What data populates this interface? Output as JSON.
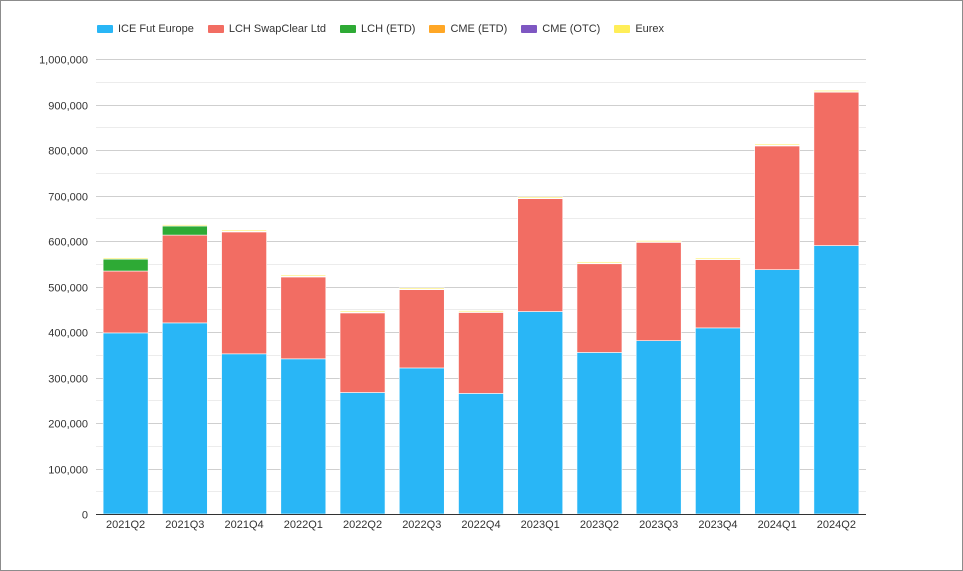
{
  "chart_data": {
    "type": "bar",
    "stacked": true,
    "categories": [
      "2021Q2",
      "2021Q3",
      "2021Q4",
      "2022Q1",
      "2022Q2",
      "2022Q3",
      "2022Q4",
      "2023Q1",
      "2023Q2",
      "2023Q3",
      "2023Q4",
      "2024Q1",
      "2024Q2"
    ],
    "series": [
      {
        "name": "ICE Fut Europe",
        "color": "#29b6f6",
        "values": [
          398000,
          420000,
          352000,
          341000,
          267000,
          321000,
          265000,
          445000,
          355000,
          381000,
          409000,
          537000,
          590000
        ]
      },
      {
        "name": "LCH SwapClear Ltd",
        "color": "#f26d63",
        "values": [
          136000,
          193000,
          268000,
          180000,
          175000,
          172000,
          178000,
          248000,
          195000,
          216000,
          150000,
          272000,
          337000
        ]
      },
      {
        "name": "LCH (ETD)",
        "color": "#2eaa35",
        "values": [
          26000,
          20000,
          1000,
          1000,
          1000,
          1000,
          1000,
          1000,
          1000,
          1000,
          1000,
          1000,
          1000
        ]
      },
      {
        "name": "CME (ETD)",
        "color": "#ffa726",
        "values": [
          500,
          500,
          500,
          500,
          500,
          500,
          500,
          500,
          500,
          500,
          500,
          500,
          500
        ]
      },
      {
        "name": "CME (OTC)",
        "color": "#7e57c2",
        "values": [
          0,
          0,
          0,
          0,
          0,
          0,
          0,
          0,
          0,
          0,
          0,
          0,
          0
        ]
      },
      {
        "name": "Eurex",
        "color": "#ffee58",
        "values": [
          2500,
          2500,
          2500,
          2500,
          2500,
          2500,
          2500,
          2500,
          2500,
          2500,
          2500,
          2500,
          2500
        ]
      }
    ],
    "ylim": [
      0,
      1000000
    ],
    "yticks": [
      0,
      100000,
      200000,
      300000,
      400000,
      500000,
      600000,
      700000,
      800000,
      900000,
      1000000
    ],
    "ytick_labels": [
      "0",
      "100,000",
      "200,000",
      "300,000",
      "400,000",
      "500,000",
      "600,000",
      "700,000",
      "800,000",
      "900,000",
      "1,000,000"
    ],
    "grid": true,
    "legend_position": "top-left",
    "title": "",
    "xlabel": "",
    "ylabel": ""
  }
}
